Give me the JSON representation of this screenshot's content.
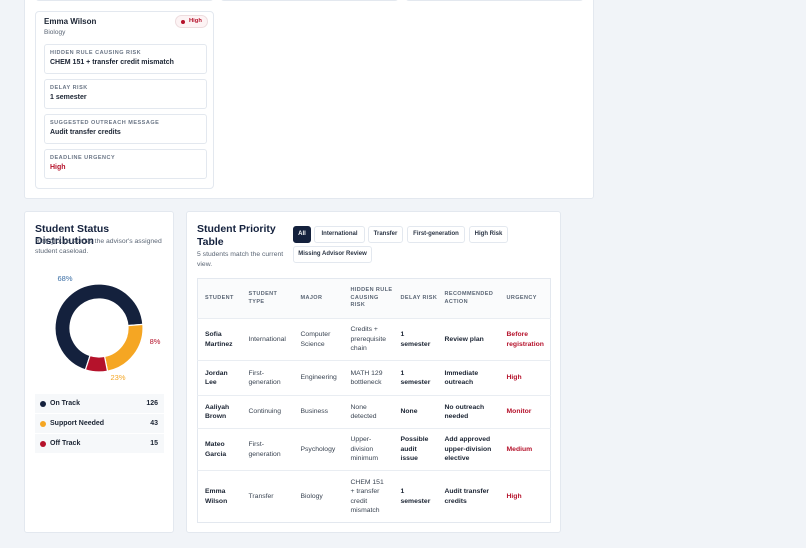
{
  "risk_card": {
    "student": "Emma Wilson",
    "major": "Biology",
    "badge": "High",
    "fields": [
      {
        "label": "HIDDEN RULE CAUSING RISK",
        "value": "CHEM 151 + transfer credit mismatch"
      },
      {
        "label": "DELAY RISK",
        "value": "1 semester"
      },
      {
        "label": "SUGGESTED OUTREACH MESSAGE",
        "value": "Audit transfer credits"
      },
      {
        "label": "DEADLINE URGENCY",
        "value": "High"
      }
    ]
  },
  "chart_data": {
    "type": "donut",
    "title": "Student Status Distribution",
    "subtitle": "Risk groups across the advisor's assigned student caseload.",
    "categories": [
      "On Track",
      "Support Needed",
      "Off Track"
    ],
    "values": [
      68,
      23,
      8
    ],
    "value_labels": [
      "68%",
      "23%",
      "8%"
    ],
    "colors": [
      "#14213d",
      "#f5a623",
      "#b5122b"
    ],
    "counts": [
      126,
      43,
      15
    ]
  },
  "priority_table": {
    "title": "Student Priority Table",
    "subtitle": "5 students match the current view.",
    "filters": [
      "All",
      "International",
      "Transfer",
      "First-generation",
      "High Risk",
      "Missing Advisor Review"
    ],
    "active_filter": 0,
    "columns": [
      "STUDENT",
      "STUDENT TYPE",
      "MAJOR",
      "HIDDEN RULE CAUSING RISK",
      "DELAY RISK",
      "RECOMMENDED ACTION",
      "URGENCY"
    ],
    "rows": [
      [
        "Sofia Martinez",
        "International",
        "Computer Science",
        "Credits + prerequisite chain",
        "1 semester",
        "Review plan",
        "Before registration"
      ],
      [
        "Jordan Lee",
        "First-generation",
        "Engineering",
        "MATH 129 bottleneck",
        "1 semester",
        "Immediate outreach",
        "High"
      ],
      [
        "Aaliyah Brown",
        "Continuing",
        "Business",
        "None detected",
        "None",
        "No outreach needed",
        "Monitor"
      ],
      [
        "Mateo Garcia",
        "First-generation",
        "Psychology",
        "Upper-division minimum",
        "Possible audit issue",
        "Add approved upper-division elective",
        "Medium"
      ],
      [
        "Emma Wilson",
        "Transfer",
        "Biology",
        "CHEM 151 + transfer credit mismatch",
        "1 semester",
        "Audit transfer credits",
        "High"
      ]
    ]
  }
}
